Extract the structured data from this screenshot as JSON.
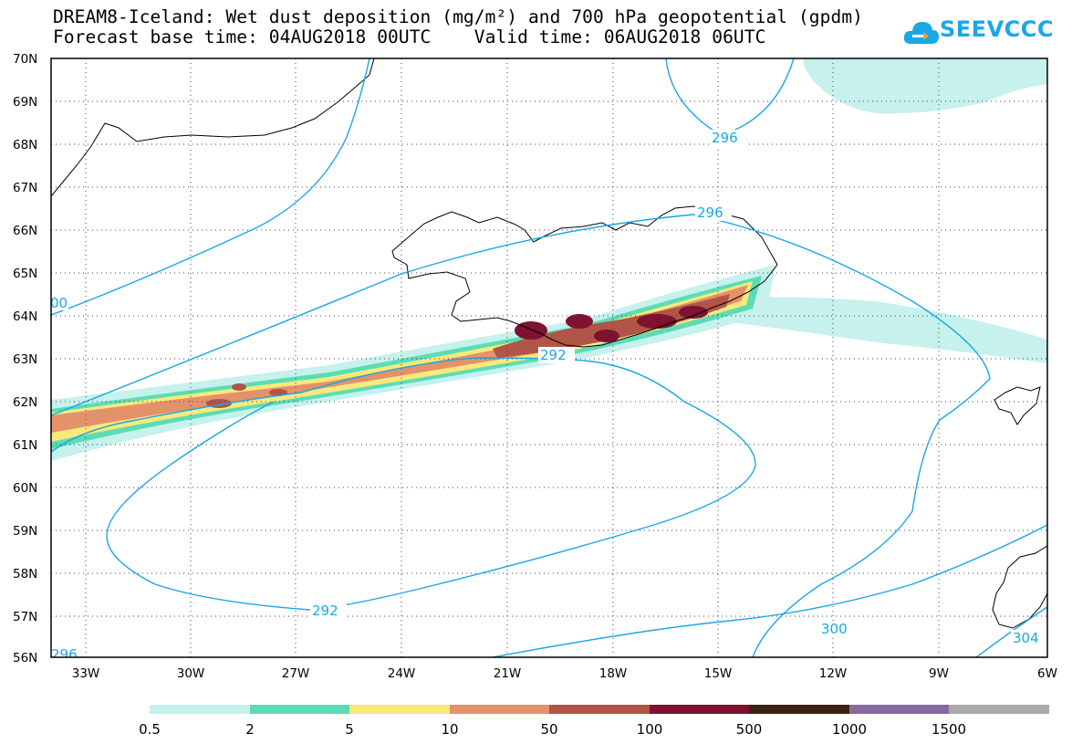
{
  "title": {
    "line1": "DREAM8-Iceland: Wet dust deposition (mg/m²) and 700 hPa geopotential (gpdm)",
    "line2": "Forecast base time: 04AUG2018 00UTC    Valid time: 06AUG2018 06UTC"
  },
  "logo": {
    "text": "SEEVCCC",
    "icon": "cloud-icon",
    "color": "#1aa7e6"
  },
  "map": {
    "lat_labels": [
      "70N",
      "69N",
      "68N",
      "67N",
      "66N",
      "65N",
      "64N",
      "63N",
      "62N",
      "61N",
      "60N",
      "59N",
      "58N",
      "57N",
      "56N"
    ],
    "lon_labels": [
      "33W",
      "30W",
      "27W",
      "24W",
      "21W",
      "18W",
      "15W",
      "12W",
      "9W",
      "6W"
    ],
    "contour_color": "#1aa7e6",
    "contour_labels": [
      "00",
      "296",
      "296",
      "292",
      "292",
      "300",
      "296",
      "304"
    ]
  },
  "legend": {
    "colors": [
      "#c6f1ec",
      "#5cdcb5",
      "#f7e97b",
      "#e4926b",
      "#b05547",
      "#7e1230",
      "#3a2314",
      "#876a9d",
      "#a9a9a9"
    ],
    "labels": [
      "0.5",
      "2",
      "5",
      "10",
      "50",
      "100",
      "500",
      "1000",
      "1500"
    ]
  }
}
